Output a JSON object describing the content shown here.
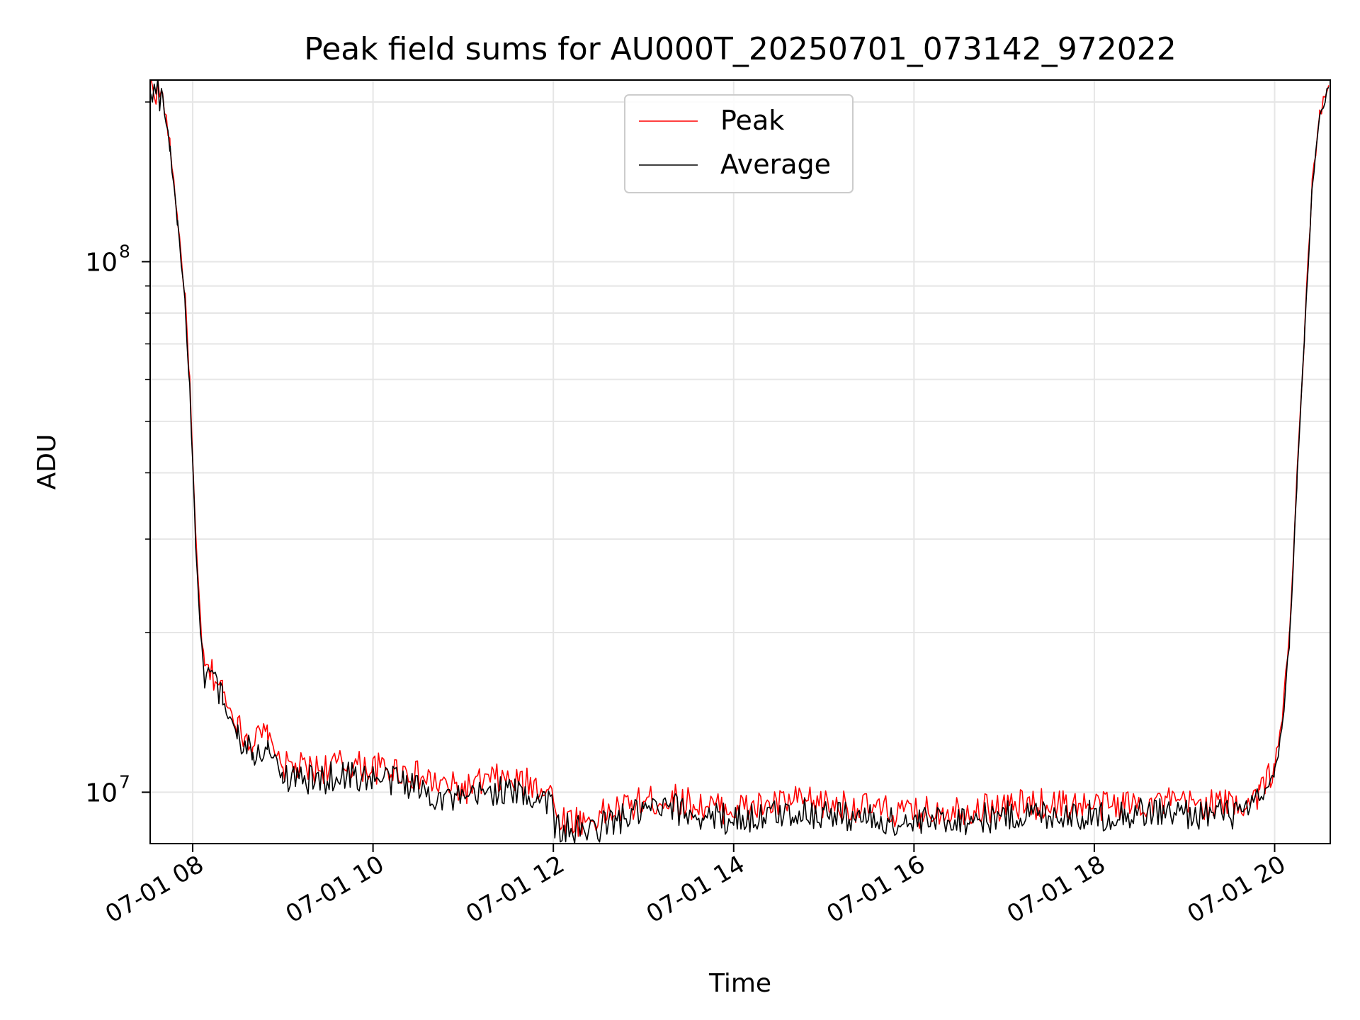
{
  "chart_data": {
    "type": "line",
    "title": "Peak field sums for AU000T_20250701_073142_972022",
    "xlabel": "Time",
    "ylabel": "ADU",
    "y_scale": "log",
    "xlim": [
      "2025-07-01T07:31:42",
      "2025-07-01T20:37:00"
    ],
    "ylim": [
      8000000,
      220000000
    ],
    "x_ticks": [
      {
        "t": "2025-07-01T08:00",
        "label": "07-01 08"
      },
      {
        "t": "2025-07-01T10:00",
        "label": "07-01 10"
      },
      {
        "t": "2025-07-01T12:00",
        "label": "07-01 12"
      },
      {
        "t": "2025-07-01T14:00",
        "label": "07-01 14"
      },
      {
        "t": "2025-07-01T16:00",
        "label": "07-01 16"
      },
      {
        "t": "2025-07-01T18:00",
        "label": "07-01 18"
      },
      {
        "t": "2025-07-01T20:00",
        "label": "07-01 20"
      }
    ],
    "y_ticks": [
      {
        "value": 10000000,
        "base": "10",
        "exp": "7"
      },
      {
        "value": 100000000,
        "base": "10",
        "exp": "8"
      }
    ],
    "grid": true,
    "legend_position": "top-center",
    "series": [
      {
        "name": "Peak",
        "color": "#ff0000",
        "points": [
          [
            "2025-07-01T07:32",
            216000000
          ],
          [
            "2025-07-01T07:40",
            205000000
          ],
          [
            "2025-07-01T07:45",
            165000000
          ],
          [
            "2025-07-01T07:50",
            120000000
          ],
          [
            "2025-07-01T07:55",
            85000000
          ],
          [
            "2025-07-01T07:58",
            60000000
          ],
          [
            "2025-07-01T08:00",
            42000000
          ],
          [
            "2025-07-01T08:02",
            30000000
          ],
          [
            "2025-07-01T08:04",
            24000000
          ],
          [
            "2025-07-01T08:06",
            19500000
          ],
          [
            "2025-07-01T08:08",
            17000000
          ],
          [
            "2025-07-01T08:15",
            16500000
          ],
          [
            "2025-07-01T08:20",
            15500000
          ],
          [
            "2025-07-01T08:30",
            13200000
          ],
          [
            "2025-07-01T08:40",
            12500000
          ],
          [
            "2025-07-01T08:50",
            12800000
          ],
          [
            "2025-07-01T09:00",
            11200000
          ],
          [
            "2025-07-01T09:20",
            11000000
          ],
          [
            "2025-07-01T09:40",
            11300000
          ],
          [
            "2025-07-01T10:00",
            11100000
          ],
          [
            "2025-07-01T10:20",
            11000000
          ],
          [
            "2025-07-01T10:40",
            10400000
          ],
          [
            "2025-07-01T11:00",
            10100000
          ],
          [
            "2025-07-01T11:20",
            10600000
          ],
          [
            "2025-07-01T11:40",
            10400000
          ],
          [
            "2025-07-01T11:59",
            10200000
          ],
          [
            "2025-07-01T12:01",
            9000000
          ],
          [
            "2025-07-01T12:20",
            8800000
          ],
          [
            "2025-07-01T12:40",
            9200000
          ],
          [
            "2025-07-01T13:00",
            9600000
          ],
          [
            "2025-07-01T13:20",
            9700000
          ],
          [
            "2025-07-01T13:40",
            9400000
          ],
          [
            "2025-07-01T14:00",
            9300000
          ],
          [
            "2025-07-01T14:20",
            9400000
          ],
          [
            "2025-07-01T14:40",
            9600000
          ],
          [
            "2025-07-01T15:00",
            9500000
          ],
          [
            "2025-07-01T15:20",
            9400000
          ],
          [
            "2025-07-01T15:40",
            9200000
          ],
          [
            "2025-07-01T16:00",
            9100000
          ],
          [
            "2025-07-01T16:20",
            9300000
          ],
          [
            "2025-07-01T16:40",
            9300000
          ],
          [
            "2025-07-01T17:00",
            9400000
          ],
          [
            "2025-07-01T17:20",
            9500000
          ],
          [
            "2025-07-01T17:40",
            9500000
          ],
          [
            "2025-07-01T18:00",
            9400000
          ],
          [
            "2025-07-01T18:20",
            9500000
          ],
          [
            "2025-07-01T18:40",
            9600000
          ],
          [
            "2025-07-01T19:00",
            9500000
          ],
          [
            "2025-07-01T19:20",
            9500000
          ],
          [
            "2025-07-01T19:40",
            9500000
          ],
          [
            "2025-07-01T19:50",
            10000000
          ],
          [
            "2025-07-01T20:00",
            11200000
          ],
          [
            "2025-07-01T20:05",
            13800000
          ],
          [
            "2025-07-01T20:10",
            20000000
          ],
          [
            "2025-07-01T20:15",
            40000000
          ],
          [
            "2025-07-01T20:20",
            75000000
          ],
          [
            "2025-07-01T20:25",
            140000000
          ],
          [
            "2025-07-01T20:30",
            190000000
          ],
          [
            "2025-07-01T20:36",
            215000000
          ]
        ]
      },
      {
        "name": "Average",
        "color": "#000000",
        "points": [
          [
            "2025-07-01T07:32",
            214000000
          ],
          [
            "2025-07-01T07:40",
            203000000
          ],
          [
            "2025-07-01T07:45",
            162000000
          ],
          [
            "2025-07-01T07:50",
            118000000
          ],
          [
            "2025-07-01T07:55",
            83000000
          ],
          [
            "2025-07-01T07:58",
            58000000
          ],
          [
            "2025-07-01T08:00",
            41000000
          ],
          [
            "2025-07-01T08:02",
            29000000
          ],
          [
            "2025-07-01T08:04",
            23000000
          ],
          [
            "2025-07-01T08:06",
            18800000
          ],
          [
            "2025-07-01T08:08",
            16400000
          ],
          [
            "2025-07-01T08:15",
            15900000
          ],
          [
            "2025-07-01T08:20",
            14900000
          ],
          [
            "2025-07-01T08:30",
            12700000
          ],
          [
            "2025-07-01T08:40",
            12000000
          ],
          [
            "2025-07-01T08:50",
            12300000
          ],
          [
            "2025-07-01T09:00",
            10700000
          ],
          [
            "2025-07-01T09:20",
            10500000
          ],
          [
            "2025-07-01T09:40",
            10800000
          ],
          [
            "2025-07-01T10:00",
            10600000
          ],
          [
            "2025-07-01T10:20",
            10500000
          ],
          [
            "2025-07-01T10:40",
            9900000
          ],
          [
            "2025-07-01T11:00",
            9600000
          ],
          [
            "2025-07-01T11:20",
            10100000
          ],
          [
            "2025-07-01T11:40",
            9900000
          ],
          [
            "2025-07-01T11:59",
            9700000
          ],
          [
            "2025-07-01T12:01",
            8600000
          ],
          [
            "2025-07-01T12:20",
            8400000
          ],
          [
            "2025-07-01T12:40",
            8800000
          ],
          [
            "2025-07-01T13:00",
            9200000
          ],
          [
            "2025-07-01T13:20",
            9300000
          ],
          [
            "2025-07-01T13:40",
            9000000
          ],
          [
            "2025-07-01T14:00",
            8900000
          ],
          [
            "2025-07-01T14:20",
            9000000
          ],
          [
            "2025-07-01T14:40",
            9200000
          ],
          [
            "2025-07-01T15:00",
            9100000
          ],
          [
            "2025-07-01T15:20",
            9000000
          ],
          [
            "2025-07-01T15:40",
            8800000
          ],
          [
            "2025-07-01T16:00",
            8700000
          ],
          [
            "2025-07-01T16:20",
            8900000
          ],
          [
            "2025-07-01T16:40",
            8900000
          ],
          [
            "2025-07-01T17:00",
            9000000
          ],
          [
            "2025-07-01T17:20",
            9100000
          ],
          [
            "2025-07-01T17:40",
            9100000
          ],
          [
            "2025-07-01T18:00",
            9000000
          ],
          [
            "2025-07-01T18:20",
            9100000
          ],
          [
            "2025-07-01T18:40",
            9200000
          ],
          [
            "2025-07-01T19:00",
            9100000
          ],
          [
            "2025-07-01T19:20",
            9100000
          ],
          [
            "2025-07-01T19:40",
            9100000
          ],
          [
            "2025-07-01T19:50",
            9600000
          ],
          [
            "2025-07-01T20:00",
            10800000
          ],
          [
            "2025-07-01T20:05",
            13300000
          ],
          [
            "2025-07-01T20:10",
            19500000
          ],
          [
            "2025-07-01T20:15",
            39000000
          ],
          [
            "2025-07-01T20:20",
            73000000
          ],
          [
            "2025-07-01T20:25",
            138000000
          ],
          [
            "2025-07-01T20:30",
            188000000
          ],
          [
            "2025-07-01T20:36",
            213000000
          ]
        ]
      }
    ]
  }
}
